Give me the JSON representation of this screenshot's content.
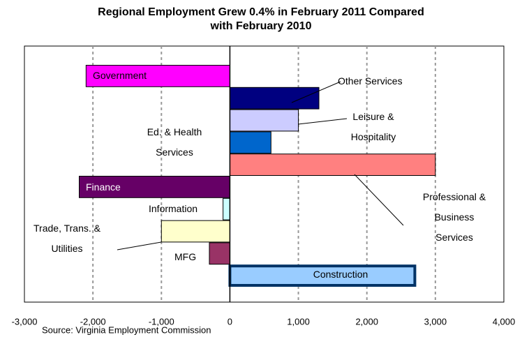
{
  "chart_data": {
    "type": "bar",
    "orientation": "horizontal",
    "title": "Regional Employment Grew 0.4% in February 2011 Compared with February 2010",
    "source": "Source: Virginia Employment Commission",
    "categories": [
      "Government",
      "Other Services",
      "Leisure & Hospitality",
      "Ed. & Health Services",
      "Professional & Business Services",
      "Finance",
      "Information",
      "Trade, Trans. & Utilities",
      "MFG",
      "Construction"
    ],
    "values": [
      -2100,
      1300,
      1000,
      600,
      3000,
      -2200,
      -100,
      -1000,
      -300,
      2700
    ],
    "colors": [
      "#ff00ff",
      "#000080",
      "#ccccff",
      "#0066cc",
      "#ff8080",
      "#660066",
      "#ccffff",
      "#ffffcc",
      "#993366",
      "#99ccff"
    ],
    "edgecolors": [
      "#000000",
      "#000000",
      "#000000",
      "#000000",
      "#000000",
      "#000000",
      "#000000",
      "#000000",
      "#000000",
      "#003366"
    ],
    "linewidths": [
      1,
      1,
      1,
      1,
      1,
      1,
      1,
      1,
      1,
      4
    ],
    "xlim": [
      -3000,
      4000
    ],
    "xticks": [
      {
        "value": -3000,
        "label": "-3,000"
      },
      {
        "value": -2000,
        "label": "-2,000"
      },
      {
        "value": -1000,
        "label": "-1,000"
      },
      0,
      {
        "value": 1000,
        "label": "1,000"
      },
      {
        "value": 2000,
        "label": "2,000"
      },
      {
        "value": 3000,
        "label": "3,000"
      },
      {
        "value": 4000,
        "label": "4,000"
      }
    ],
    "grid": true
  }
}
